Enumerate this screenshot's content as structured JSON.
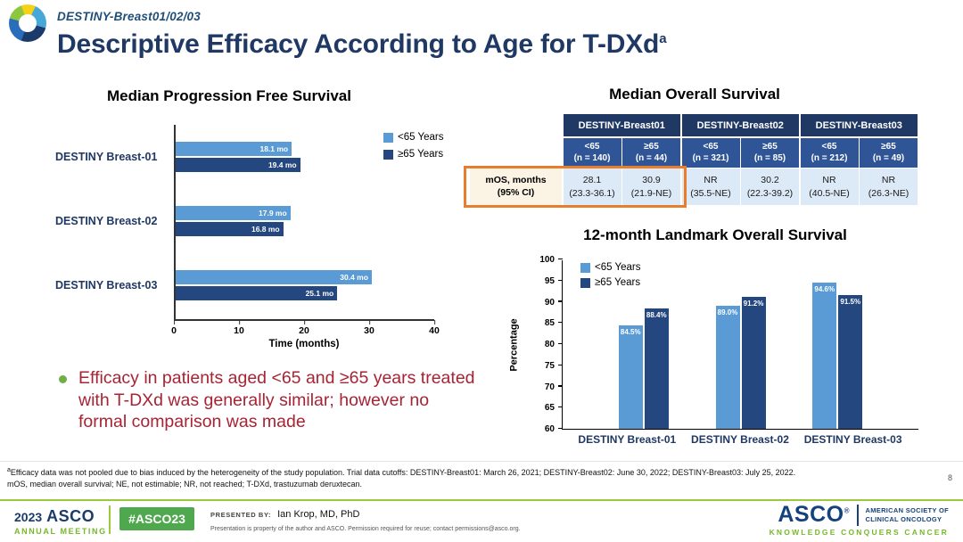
{
  "header": {
    "eyebrow": "DESTINY-Breast01/02/03",
    "title": "Descriptive Efficacy According to Age for T-DXd",
    "title_sup": "a"
  },
  "chart_data": [
    {
      "id": "pfs",
      "type": "bar",
      "orientation": "horizontal",
      "title": "Median Progression Free Survival",
      "xlabel": "Time (months)",
      "xlim": [
        0,
        40
      ],
      "xticks": [
        0,
        10,
        20,
        30,
        40
      ],
      "categories": [
        "DESTINY Breast-01",
        "DESTINY Breast-02",
        "DESTINY Breast-03"
      ],
      "series": [
        {
          "name": "<65 Years",
          "color": "#5B9BD5",
          "values": [
            18.1,
            17.9,
            30.4
          ],
          "labels": [
            "18.1 mo",
            "17.9 mo",
            "30.4 mo"
          ]
        },
        {
          "name": "≥65 Years",
          "color": "#24477F",
          "values": [
            19.4,
            16.8,
            25.1
          ],
          "labels": [
            "19.4 mo",
            "16.8 mo",
            "25.1 mo"
          ]
        }
      ],
      "legend_position": "top-right",
      "grid": false
    },
    {
      "id": "os",
      "type": "table",
      "title": "Median Overall Survival",
      "trials": [
        "DESTINY-Breast01",
        "DESTINY-Breast02",
        "DESTINY-Breast03"
      ],
      "subheaders": [
        [
          "<65",
          "(n = 140)"
        ],
        [
          "≥65",
          "(n = 44)"
        ],
        [
          "<65",
          "(n = 321)"
        ],
        [
          "≥65",
          "(n = 85)"
        ],
        [
          "<65",
          "(n = 212)"
        ],
        [
          "≥65",
          "(n = 49)"
        ]
      ],
      "row_label": [
        "mOS, months",
        "(95% CI)"
      ],
      "values": [
        [
          "28.1",
          "(23.3-36.1)"
        ],
        [
          "30.9",
          "(21.9-NE)"
        ],
        [
          "NR",
          "(35.5-NE)"
        ],
        [
          "30.2",
          "(22.3-39.2)"
        ],
        [
          "NR",
          "(40.5-NE)"
        ],
        [
          "NR",
          "(26.3-NE)"
        ]
      ],
      "highlight_color": "#E87D2E",
      "highlighted_region": "mOS row label and DESTINY-Breast01 value cells",
      "header_colors": {
        "trial_row": "#1F3864",
        "subheader_row": "#2F5597",
        "label_cell": "#FBF3E4",
        "value_cells": "#DCE9F6"
      }
    },
    {
      "id": "landmark",
      "type": "bar",
      "orientation": "vertical",
      "title": "12-month Landmark Overall Survival",
      "ylabel": "Percentage",
      "ylim": [
        60,
        100
      ],
      "yticks": [
        60,
        65,
        70,
        75,
        80,
        85,
        90,
        95,
        100
      ],
      "categories": [
        "DESTINY Breast-01",
        "DESTINY Breast-02",
        "DESTINY Breast-03"
      ],
      "series": [
        {
          "name": "<65 Years",
          "color": "#5B9BD5",
          "values": [
            84.5,
            89.0,
            94.6
          ],
          "labels": [
            "84.5%",
            "89.0%",
            "94.6%"
          ]
        },
        {
          "name": "≥65 Years",
          "color": "#24477F",
          "values": [
            88.4,
            91.2,
            91.5
          ],
          "labels": [
            "88.4%",
            "91.2%",
            "91.5%"
          ]
        }
      ],
      "legend_position": "top-left",
      "grid": false
    }
  ],
  "bullet": {
    "marker_color": "#6FAF46",
    "text_color": "#A82334",
    "text": "Efficacy in patients aged <65 and ≥65 years treated with T-DXd was generally similar; however no formal comparison was made"
  },
  "footnote": {
    "sup": "a",
    "line1": "Efficacy data was not pooled due to bias induced by the heterogeneity of the study population. Trial data cutoffs: DESTINY-Breast01: March 26, 2021; DESTINY-Breast02: June 30, 2022; DESTINY-Breast03: July 25, 2022.",
    "line2": "mOS, median overall survival; NE, not estimable; NR, not reached; T-DXd, trastuzumab deruxtecan.",
    "page_number": "8"
  },
  "footer": {
    "meeting_year": "2023",
    "meeting_name": "ASCO",
    "meeting_sub": "ANNUAL MEETING",
    "hashtag": "#ASCO23",
    "presented_by_label": "PRESENTED BY:",
    "presenter": "Ian Krop, MD, PhD",
    "disclaimer": "Presentation is property of the author and ASCO. Permission required for reuse; contact permissions@asco.org.",
    "asco_wordmark": "ASCO",
    "asco_reg": "®",
    "asco_society_line1": "AMERICAN SOCIETY OF",
    "asco_society_line2": "CLINICAL ONCOLOGY",
    "asco_tagline": "KNOWLEDGE CONQUERS CANCER"
  },
  "colors": {
    "title_navy": "#1F3864",
    "accent_lt65": "#5B9BD5",
    "accent_ge65": "#24477F",
    "highlight_orange": "#E87D2E",
    "bullet_red": "#A82334",
    "bullet_green": "#6FAF46",
    "footer_line_green": "#9BCB3C",
    "hashtag_green": "#4FA84E"
  }
}
